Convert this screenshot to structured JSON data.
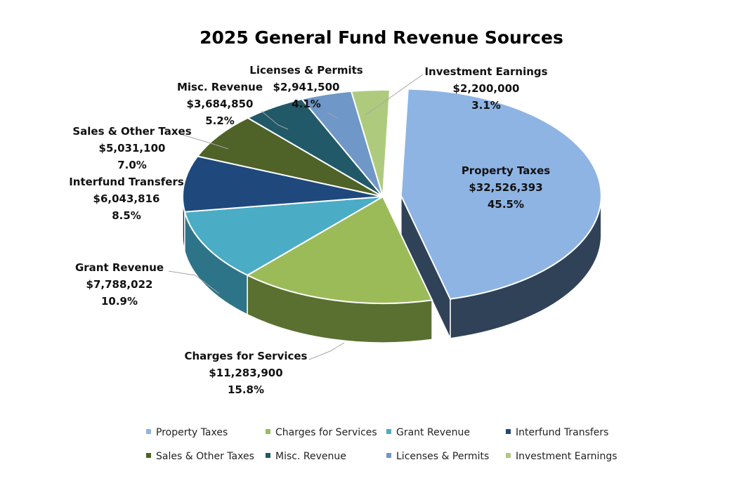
{
  "chart_data": {
    "type": "pie",
    "title": "2025 General Fund Revenue Sources",
    "slices": [
      {
        "name": "Property Taxes",
        "value_label": "$32,526,393",
        "percent_label": "45.5%",
        "value": 32526393,
        "percent": 45.5,
        "color": "#8eb4e3",
        "side": "#2f4258",
        "exploded": true
      },
      {
        "name": "Charges for Services",
        "value_label": "$11,283,900",
        "percent_label": "15.8%",
        "value": 11283900,
        "percent": 15.8,
        "color": "#9bbb59",
        "side": "#5a7030"
      },
      {
        "name": "Grant Revenue",
        "value_label": "$7,788,022",
        "percent_label": "10.9%",
        "value": 7788022,
        "percent": 10.9,
        "color": "#4bacc6",
        "side": "#2e7488"
      },
      {
        "name": "Interfund Transfers",
        "value_label": "$6,043,816",
        "percent_label": "8.5%",
        "value": 6043816,
        "percent": 8.5,
        "color": "#1f497d",
        "side": "#132c4c"
      },
      {
        "name": "Sales & Other Taxes",
        "value_label": "$5,031,100",
        "percent_label": "7.0%",
        "value": 5031100,
        "percent": 7.0,
        "color": "#4f6228",
        "side": "#36441b"
      },
      {
        "name": "Misc. Revenue",
        "value_label": "$3,684,850",
        "percent_label": "5.2%",
        "value": 3684850,
        "percent": 5.2,
        "color": "#215968",
        "side": "#163c47"
      },
      {
        "name": "Licenses & Permits",
        "value_label": "$2,941,500",
        "percent_label": "4.1%",
        "value": 2941500,
        "percent": 4.1,
        "color": "#6f97c7",
        "side": "#4a6a90"
      },
      {
        "name": "Investment Earnings",
        "value_label": "$2,200,000",
        "percent_label": "3.1%",
        "value": 2200000,
        "percent": 3.1,
        "color": "#aecb7d",
        "side": "#7d9550"
      }
    ],
    "legend": {
      "position": "bottom",
      "items": [
        "Property Taxes",
        "Charges for Services",
        "Grant Revenue",
        "Interfund Transfers",
        "Sales & Other Taxes",
        "Misc. Revenue",
        "Licenses & Permits",
        "Investment Earnings"
      ]
    }
  }
}
